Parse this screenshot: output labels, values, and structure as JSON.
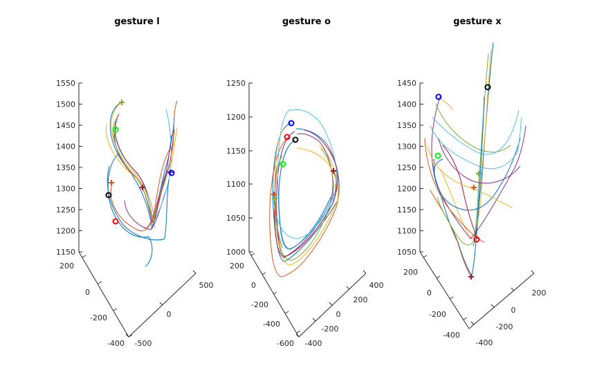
{
  "chart_data": [
    {
      "type": "line3d",
      "title": "gesture l",
      "zlim": [
        1150,
        1550
      ],
      "z_ticks": [
        "1150",
        "1200",
        "1250",
        "1300",
        "1350",
        "1400",
        "1450",
        "1500",
        "1550"
      ],
      "x_ticks": [
        "-400",
        "-200",
        "0",
        "200"
      ],
      "y_ticks": [
        "-500",
        "0",
        "500"
      ],
      "series_count": 15
    },
    {
      "type": "line3d",
      "title": "gesture o",
      "zlim": [
        1000,
        1250
      ],
      "z_ticks": [
        "1000",
        "1050",
        "1100",
        "1150",
        "1200",
        "1250"
      ],
      "x_ticks": [
        "-600",
        "-400",
        "-200",
        "0",
        "200"
      ],
      "y_ticks": [
        "-400",
        "-200",
        "0",
        "200",
        "400"
      ],
      "series_count": 15
    },
    {
      "type": "line3d",
      "title": "gesture x",
      "zlim": [
        1050,
        1450
      ],
      "z_ticks": [
        "1050",
        "1100",
        "1150",
        "1200",
        "1250",
        "1300",
        "1350",
        "1400",
        "1450"
      ],
      "x_ticks": [
        "-400",
        "-200",
        "0",
        "200"
      ],
      "y_ticks": [
        "-400",
        "-200",
        "0",
        "200"
      ],
      "series_count": 15
    }
  ],
  "colors": [
    "#0072bd",
    "#d95319",
    "#edb120",
    "#7e2f8e",
    "#77ac30",
    "#4dbeee",
    "#a2142f"
  ],
  "marker_colors": {
    "start_plus": [
      "#77ac30",
      "#d95319",
      "#a2142f",
      "#7e2f8e"
    ],
    "end_circle": [
      "#00ff00",
      "#000000",
      "#ff0000",
      "#0000ff"
    ]
  }
}
